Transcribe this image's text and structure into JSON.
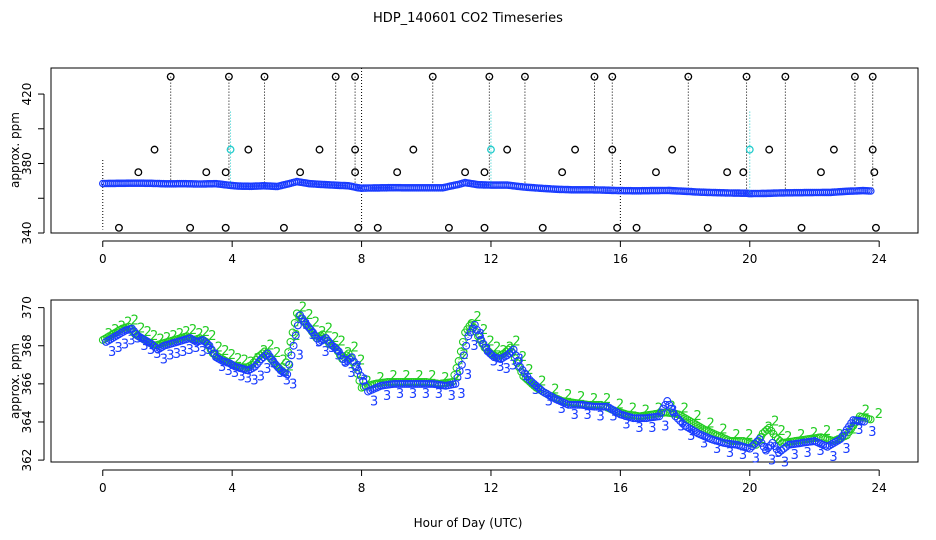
{
  "title": "HDP_140601  CO2 Timeseries",
  "xlabel": "Hour of Day (UTC)",
  "colors": {
    "blue": "#1a3cff",
    "cyan": "#22cccc",
    "green": "#22cc22",
    "black": "#000000"
  },
  "chart_data": [
    {
      "type": "scatter",
      "title": "",
      "xlabel": "",
      "ylabel": "approx. ppm",
      "xlim": [
        -1.6,
        25.2
      ],
      "ylim": [
        340,
        435
      ],
      "xticks": [
        0,
        4,
        8,
        12,
        16,
        20,
        24
      ],
      "yticks": [
        340,
        380,
        420
      ],
      "yticks_minor": [
        360,
        400
      ],
      "baseline": {
        "x": [
          0,
          0.5,
          1,
          1.5,
          2,
          2.5,
          3,
          3.5,
          3.9,
          4.2,
          4.6,
          5.0,
          5.4,
          5.8,
          6.0,
          6.4,
          6.8,
          7.2,
          7.6,
          7.9,
          8.0,
          8.2,
          8.6,
          9.0,
          9.5,
          10.0,
          10.5,
          11.0,
          11.2,
          11.6,
          12.0,
          12.5,
          13.0,
          13.5,
          14.0,
          14.5,
          15.0,
          15.5,
          15.8,
          16.0,
          16.5,
          17.0,
          17.5,
          18.0,
          18.5,
          19.0,
          19.5,
          19.9,
          20.0,
          20.5,
          21.0,
          21.5,
          22.0,
          22.5,
          23.0,
          23.5,
          23.8
        ],
        "y": [
          368.5,
          368.6,
          368.7,
          368.6,
          368.3,
          368.4,
          368.2,
          368.4,
          367.5,
          367.0,
          366.9,
          367.2,
          366.8,
          368.6,
          369.6,
          368.4,
          367.9,
          367.5,
          367.2,
          366.0,
          365.8,
          365.9,
          366.0,
          366.1,
          366.0,
          366.0,
          366.0,
          368.0,
          369.0,
          367.8,
          367.6,
          367.6,
          366.5,
          365.8,
          365.2,
          364.9,
          364.9,
          364.7,
          364.5,
          364.4,
          364.3,
          364.4,
          364.5,
          364.0,
          363.5,
          363.2,
          363.0,
          362.9,
          362.7,
          362.8,
          363.1,
          363.2,
          363.3,
          363.4,
          364.0,
          364.4,
          364.1
        ]
      },
      "spikes": {
        "x": [
          2.1,
          3.9,
          5.0,
          7.2,
          7.8,
          10.2,
          11.95,
          13.05,
          15.2,
          15.75,
          18.1,
          19.9,
          21.1,
          23.25,
          23.8
        ],
        "y": [
          430,
          430,
          430,
          430,
          430,
          430,
          430,
          430,
          430,
          430,
          430,
          430,
          430,
          430,
          430
        ]
      },
      "mid_points": {
        "x": [
          1.6,
          4.5,
          6.7,
          7.8,
          9.6,
          12.5,
          14.6,
          15.75,
          17.6,
          20.6,
          22.6,
          23.8
        ],
        "y": [
          388,
          388,
          388,
          388,
          388,
          388,
          388,
          388,
          388,
          388,
          388,
          388
        ]
      },
      "cyan_points": {
        "x": [
          3.95,
          12.0,
          20.0
        ],
        "y": [
          388,
          388,
          388
        ]
      },
      "low_points": {
        "x": [
          0.5,
          2.7,
          3.8,
          5.6,
          7.9,
          8.5,
          10.7,
          11.8,
          13.6,
          15.9,
          16.5,
          18.7,
          19.8,
          21.6,
          23.9
        ],
        "y": [
          343,
          343,
          343,
          343,
          343,
          343,
          343,
          343,
          343,
          343,
          343,
          343,
          343,
          343,
          343
        ]
      },
      "near_points": {
        "x": [
          1.1,
          3.2,
          3.8,
          6.1,
          7.8,
          9.1,
          11.2,
          11.8,
          14.2,
          17.1,
          19.3,
          19.8,
          22.2,
          23.85
        ],
        "y": [
          375,
          375,
          375,
          375,
          375,
          375,
          375,
          375,
          375,
          375,
          375,
          375,
          375,
          375
        ]
      },
      "dotted_drops": {
        "x": [
          0,
          8.0,
          16.0
        ],
        "y_top": [
          382,
          435,
          382
        ],
        "y_bottom": [
          342,
          342,
          342
        ]
      }
    },
    {
      "type": "scatter",
      "title": "",
      "xlabel": "Hour of Day (UTC)",
      "ylabel": "approx. ppm",
      "xlim": [
        -1.6,
        25.2
      ],
      "ylim": [
        361.9,
        370.4
      ],
      "xticks": [
        0,
        4,
        8,
        12,
        16,
        20,
        24
      ],
      "yticks": [
        362,
        364,
        366,
        368,
        370
      ],
      "series": [
        {
          "name": "2",
          "color": "green",
          "x": [
            0,
            0.2,
            0.4,
            0.6,
            0.8,
            1.0,
            1.2,
            1.4,
            1.6,
            1.8,
            2.0,
            2.2,
            2.4,
            2.6,
            2.8,
            3.0,
            3.2,
            3.4,
            3.6,
            3.8,
            4.0,
            4.2,
            4.4,
            4.6,
            4.8,
            5.0,
            5.2,
            5.4,
            5.6,
            5.8,
            6.0,
            6.2,
            6.4,
            6.6,
            6.8,
            7.0,
            7.2,
            7.4,
            7.6,
            7.8,
            8.0,
            8.4,
            8.8,
            9.2,
            9.6,
            10.0,
            10.4,
            10.8,
            11.0,
            11.2,
            11.4,
            11.6,
            11.8,
            12.0,
            12.2,
            12.4,
            12.6,
            12.8,
            13.0,
            13.4,
            13.8,
            14.2,
            14.6,
            15.0,
            15.4,
            15.8,
            16.2,
            16.6,
            17.0,
            17.4,
            17.8,
            18.2,
            18.6,
            19.0,
            19.4,
            19.8,
            20.2,
            20.4,
            20.6,
            20.8,
            21.0,
            21.4,
            21.8,
            22.2,
            22.6,
            23.0,
            23.4,
            23.8
          ],
          "y": [
            368.3,
            368.5,
            368.7,
            368.9,
            369.0,
            368.6,
            368.4,
            368.2,
            368.0,
            368.1,
            368.2,
            368.3,
            368.4,
            368.5,
            368.3,
            368.4,
            368.2,
            367.6,
            367.4,
            367.2,
            367.0,
            366.9,
            366.8,
            367.0,
            367.4,
            367.7,
            367.3,
            366.9,
            366.6,
            368.2,
            369.7,
            369.3,
            368.9,
            368.4,
            368.6,
            368.1,
            367.9,
            367.3,
            367.6,
            366.9,
            365.8,
            366.0,
            366.1,
            366.1,
            366.1,
            366.1,
            366.0,
            366.1,
            367.2,
            368.7,
            369.2,
            368.5,
            367.9,
            367.6,
            367.4,
            367.6,
            367.9,
            367.1,
            366.4,
            365.8,
            365.4,
            365.1,
            365.0,
            364.9,
            364.9,
            364.6,
            364.4,
            364.3,
            364.4,
            364.5,
            364.4,
            364.0,
            363.6,
            363.3,
            363.0,
            363.0,
            362.8,
            363.4,
            363.7,
            363.2,
            362.9,
            363.0,
            363.1,
            363.2,
            363.0,
            363.3,
            364.3,
            364.1
          ]
        },
        {
          "name": "3",
          "color": "blue",
          "x": [
            0.1,
            0.3,
            0.5,
            0.7,
            0.9,
            1.1,
            1.3,
            1.5,
            1.7,
            1.9,
            2.1,
            2.3,
            2.5,
            2.7,
            2.9,
            3.1,
            3.3,
            3.5,
            3.7,
            3.9,
            4.1,
            4.3,
            4.5,
            4.7,
            4.9,
            5.1,
            5.3,
            5.5,
            5.7,
            5.9,
            6.1,
            6.3,
            6.5,
            6.7,
            6.9,
            7.1,
            7.3,
            7.5,
            7.7,
            7.9,
            8.2,
            8.6,
            9.0,
            9.4,
            9.8,
            10.2,
            10.6,
            10.9,
            11.1,
            11.3,
            11.5,
            11.7,
            11.9,
            12.1,
            12.3,
            12.5,
            12.7,
            12.9,
            13.2,
            13.6,
            14.0,
            14.4,
            14.8,
            15.2,
            15.6,
            16.0,
            16.4,
            16.8,
            17.2,
            17.45,
            17.7,
            18.0,
            18.4,
            18.8,
            19.2,
            19.6,
            20.0,
            20.3,
            20.5,
            20.7,
            20.9,
            21.2,
            21.6,
            22.0,
            22.4,
            22.8,
            23.2,
            23.6
          ],
          "y": [
            368.2,
            368.4,
            368.6,
            368.8,
            368.9,
            368.5,
            368.3,
            368.1,
            367.8,
            368.0,
            368.1,
            368.2,
            368.3,
            368.4,
            368.2,
            368.3,
            368.0,
            367.4,
            367.2,
            367.1,
            366.9,
            366.8,
            366.7,
            366.9,
            367.3,
            367.6,
            367.1,
            366.7,
            366.5,
            368.0,
            369.6,
            369.1,
            368.7,
            368.2,
            368.4,
            368.0,
            367.7,
            367.1,
            367.4,
            366.7,
            365.6,
            365.9,
            366.0,
            366.0,
            366.0,
            366.0,
            365.9,
            366.0,
            367.0,
            368.5,
            369.1,
            368.3,
            367.7,
            367.4,
            367.3,
            367.5,
            367.8,
            366.9,
            366.2,
            365.6,
            365.2,
            364.9,
            364.9,
            364.8,
            364.8,
            364.4,
            364.2,
            364.2,
            364.3,
            365.1,
            364.3,
            363.8,
            363.4,
            363.1,
            362.9,
            362.8,
            362.6,
            363.1,
            362.5,
            362.9,
            362.4,
            362.8,
            362.9,
            363.0,
            362.7,
            363.1,
            364.1,
            364.0
          ]
        }
      ]
    }
  ]
}
